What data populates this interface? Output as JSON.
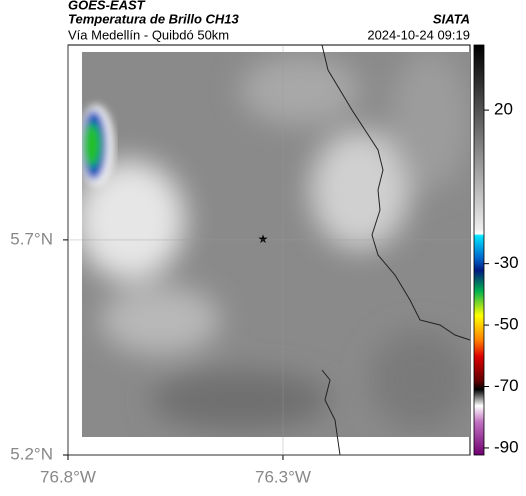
{
  "header": {
    "title": "GOES-EAST",
    "subtitle": "Temperatura de Brillo CH13",
    "source": "SIATA",
    "location": "Vía Medellín - Quibdó 50km",
    "datetime": "2024-10-24 09:19"
  },
  "map": {
    "xlim": [
      -76.8,
      -75.865
    ],
    "ylim": [
      5.2,
      6.153
    ],
    "xticks": [
      {
        "value": -76.8,
        "label": "76.8°W"
      },
      {
        "value": -76.3,
        "label": "76.3°W"
      }
    ],
    "yticks": [
      {
        "value": 5.7,
        "label": "5.7°N"
      },
      {
        "value": 5.2,
        "label": "5.2°N"
      }
    ]
  },
  "colorbar": {
    "clim": [
      -92.3,
      41.2
    ],
    "ticks": [
      20,
      -30,
      -50,
      -70,
      -90
    ]
  }
}
